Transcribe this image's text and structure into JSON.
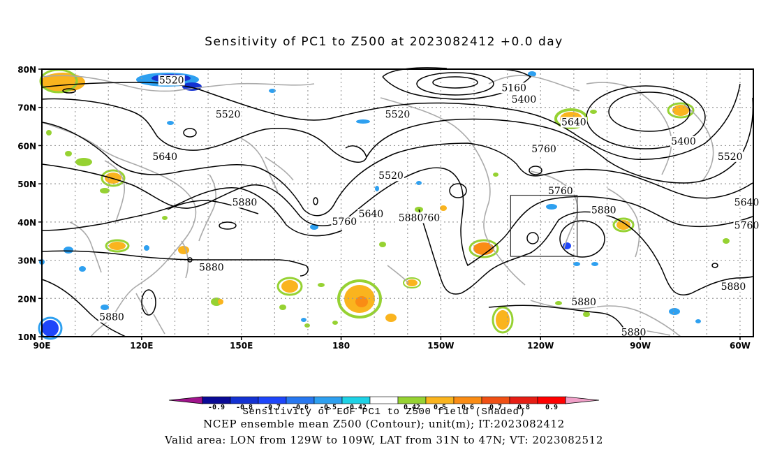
{
  "title": "Sensitivity of PC1 to Z500 at 2023082412 +0.0 day",
  "map": {
    "lon_range": [
      90,
      304
    ],
    "lat_range": [
      10,
      80
    ],
    "lat_labels": [
      "80N",
      "70N",
      "60N",
      "50N",
      "40N",
      "30N",
      "20N",
      "10N"
    ],
    "lon_labels": [
      "90E",
      "120E",
      "150E",
      "180",
      "150W",
      "120W",
      "90W",
      "60W"
    ],
    "gridlines": true
  },
  "contours": {
    "variable": "NCEP ensemble mean Z500",
    "labels": [
      {
        "text": "5520",
        "lon": 129,
        "lat": 77
      },
      {
        "text": "5160",
        "lon": 232,
        "lat": 75
      },
      {
        "text": "5400",
        "lon": 235,
        "lat": 72
      },
      {
        "text": "5520",
        "lon": 146,
        "lat": 68
      },
      {
        "text": "5520",
        "lon": 197,
        "lat": 68
      },
      {
        "text": "5640",
        "lon": 250,
        "lat": 66
      },
      {
        "text": "5760",
        "lon": 241,
        "lat": 59
      },
      {
        "text": "5400",
        "lon": 283,
        "lat": 61
      },
      {
        "text": "5520",
        "lon": 297,
        "lat": 57
      },
      {
        "text": "5640",
        "lon": 127,
        "lat": 57
      },
      {
        "text": "5520",
        "lon": 195,
        "lat": 52
      },
      {
        "text": "5760",
        "lon": 246,
        "lat": 48
      },
      {
        "text": "5880",
        "lon": 151,
        "lat": 45
      },
      {
        "text": "5880",
        "lon": 259,
        "lat": 43
      },
      {
        "text": "5640",
        "lon": 302,
        "lat": 45
      },
      {
        "text": "5640",
        "lon": 189,
        "lat": 42
      },
      {
        "text": "5760",
        "lon": 181,
        "lat": 40
      },
      {
        "text": "5760",
        "lon": 206,
        "lat": 41
      },
      {
        "text": "5880",
        "lon": 201,
        "lat": 41
      },
      {
        "text": "5760",
        "lon": 302,
        "lat": 39
      },
      {
        "text": "5880",
        "lon": 141,
        "lat": 28
      },
      {
        "text": "5880",
        "lon": 298,
        "lat": 23
      },
      {
        "text": "5880",
        "lon": 253,
        "lat": 19
      },
      {
        "text": "5880",
        "lon": 111,
        "lat": 15
      },
      {
        "text": "5880",
        "lon": 268,
        "lat": 11
      }
    ]
  },
  "valid_area": {
    "lon_min": 231,
    "lon_max": 251,
    "lat_min": 31,
    "lat_max": 47
  },
  "colorbar": {
    "variable": "Sensitivity of EOF PC1 to Z500 field (Shaded)",
    "colors": [
      "#a0148c",
      "#0a0a96",
      "#1432d2",
      "#1e46fa",
      "#2878f0",
      "#2ea0f0",
      "#1ed2e6",
      "#ffffff",
      "#96d232",
      "#fab41e",
      "#fa8c14",
      "#f05014",
      "#e61e14",
      "#ff0000",
      "#f0a0c8"
    ],
    "labels": [
      "-0.9",
      "-0.8",
      "-0.7",
      "-0.6",
      "-0.5",
      "-0.42",
      "0.42",
      "0.5",
      "0.6",
      "0.7",
      "0.8",
      "0.9"
    ]
  },
  "footer": {
    "line1": "Sensitivity of EOF PC1 to Z500 field (Shaded)",
    "line2": "NCEP ensemble mean Z500 (Contour); unit(m); IT:2023082412",
    "line3": "Valid area: LON from 129W to 109W, LAT from 31N to 47N; VT: 2023082512"
  }
}
